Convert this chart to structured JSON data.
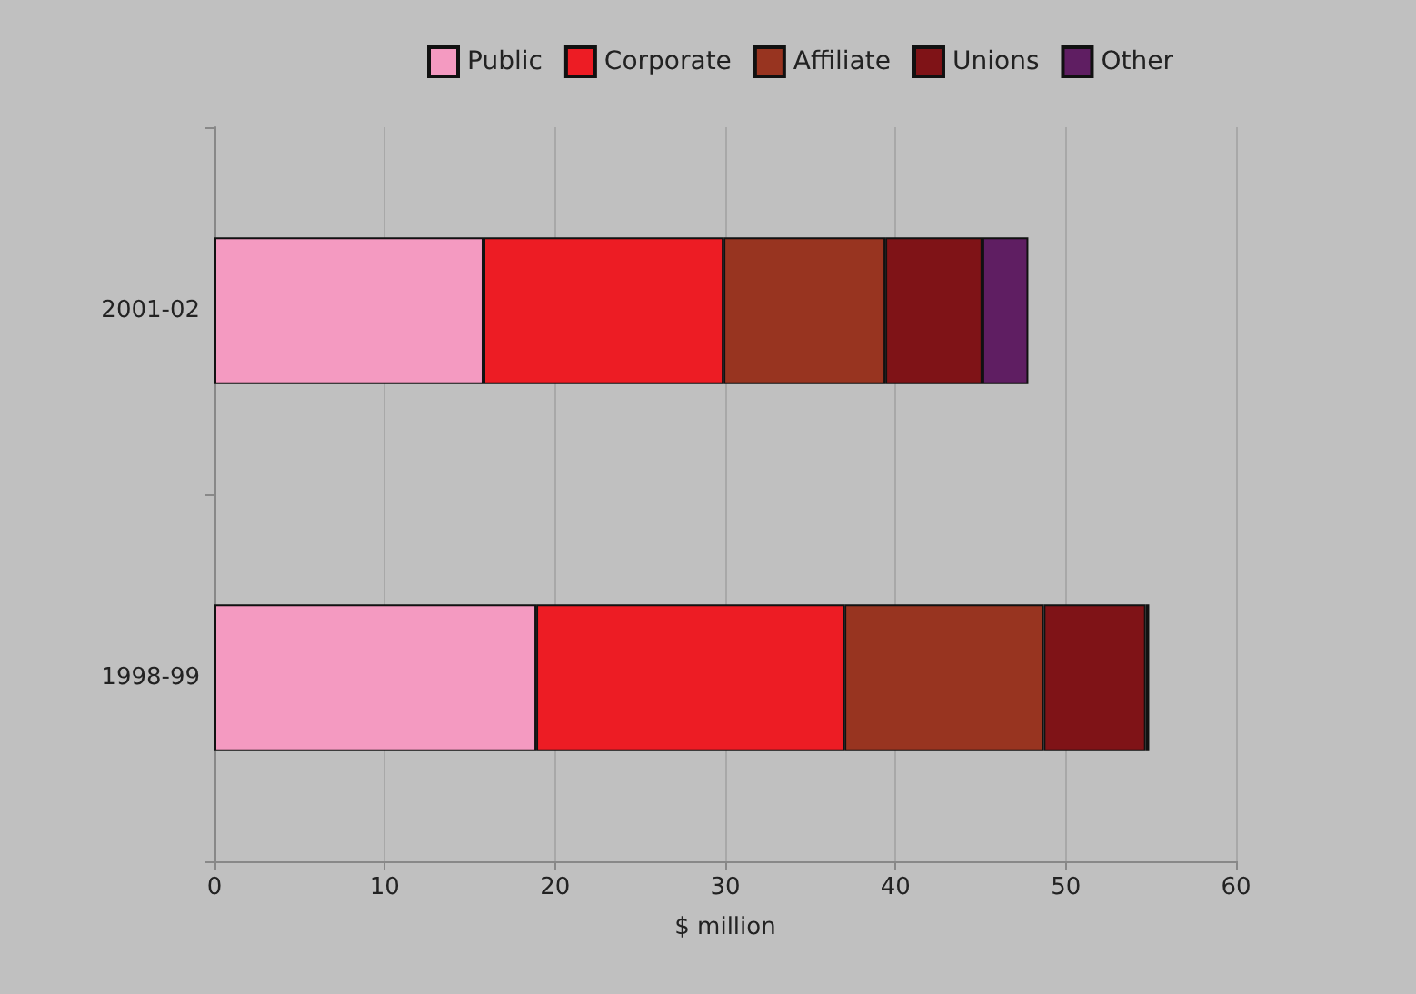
{
  "chart_data": {
    "type": "bar",
    "orientation": "horizontal",
    "stacked": true,
    "xlabel": "$ million",
    "categories": [
      "2001-02",
      "1998-99"
    ],
    "series": [
      {
        "name": "Public",
        "color": "#f49ac1",
        "values": [
          15.8,
          18.9
        ]
      },
      {
        "name": "Corporate",
        "color": "#ed1c24",
        "values": [
          14.1,
          18.1
        ]
      },
      {
        "name": "Affiliate",
        "color": "#983420",
        "values": [
          9.5,
          11.7
        ]
      },
      {
        "name": "Unions",
        "color": "#7f1317",
        "values": [
          5.7,
          6.0
        ]
      },
      {
        "name": "Other",
        "color": "#5f1e62",
        "values": [
          2.7,
          0.2
        ]
      }
    ],
    "xlim": [
      0,
      60
    ],
    "xticks": [
      0,
      10,
      20,
      30,
      40,
      50,
      60
    ],
    "grid": "x",
    "legend": "top"
  }
}
